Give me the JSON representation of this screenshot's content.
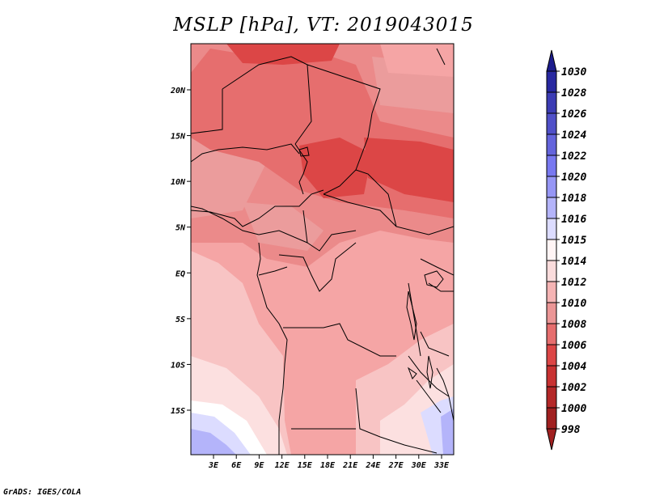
{
  "title": "MSLP [hPa], VT: 2019043015",
  "footer": "GrADS: IGES/COLA",
  "map": {
    "lat_labels": [
      "20N",
      "15N",
      "10N",
      "5N",
      "EQ",
      "5S",
      "10S",
      "15S"
    ],
    "lat_values": [
      20,
      15,
      10,
      5,
      0,
      -5,
      -10,
      -15
    ],
    "lon_labels": [
      "3E",
      "6E",
      "9E",
      "12E",
      "15E",
      "18E",
      "21E",
      "24E",
      "27E",
      "30E",
      "33E"
    ],
    "lon_values": [
      3,
      6,
      9,
      12,
      15,
      18,
      21,
      24,
      27,
      30,
      33
    ]
  },
  "colorbar": {
    "levels": [
      "1030",
      "1028",
      "1026",
      "1024",
      "1022",
      "1020",
      "1018",
      "1016",
      "1015",
      "1014",
      "1012",
      "1010",
      "1008",
      "1006",
      "1004",
      "1002",
      "1000",
      "998"
    ],
    "colors": [
      "#1c1c8c",
      "#2828a0",
      "#3c3cb4",
      "#5050c8",
      "#6464dc",
      "#7878f0",
      "#9696f5",
      "#b4b4fa",
      "#dcdcff",
      "#fff5f5",
      "#fadcdc",
      "#f5b4b4",
      "#eb9696",
      "#e66e6e",
      "#dc4646",
      "#c83232",
      "#b42828",
      "#a02020"
    ]
  },
  "colors": {
    "p1002": "#dc4646",
    "p1004": "#e66e6e",
    "p1006": "#eb8a8a",
    "p1008": "#f5a5a5",
    "p1010": "#f8c4c4",
    "p1012": "#fce0e0",
    "p1014": "#ffffff",
    "p1016": "#dcdcff",
    "p1018": "#b4b4fa"
  }
}
